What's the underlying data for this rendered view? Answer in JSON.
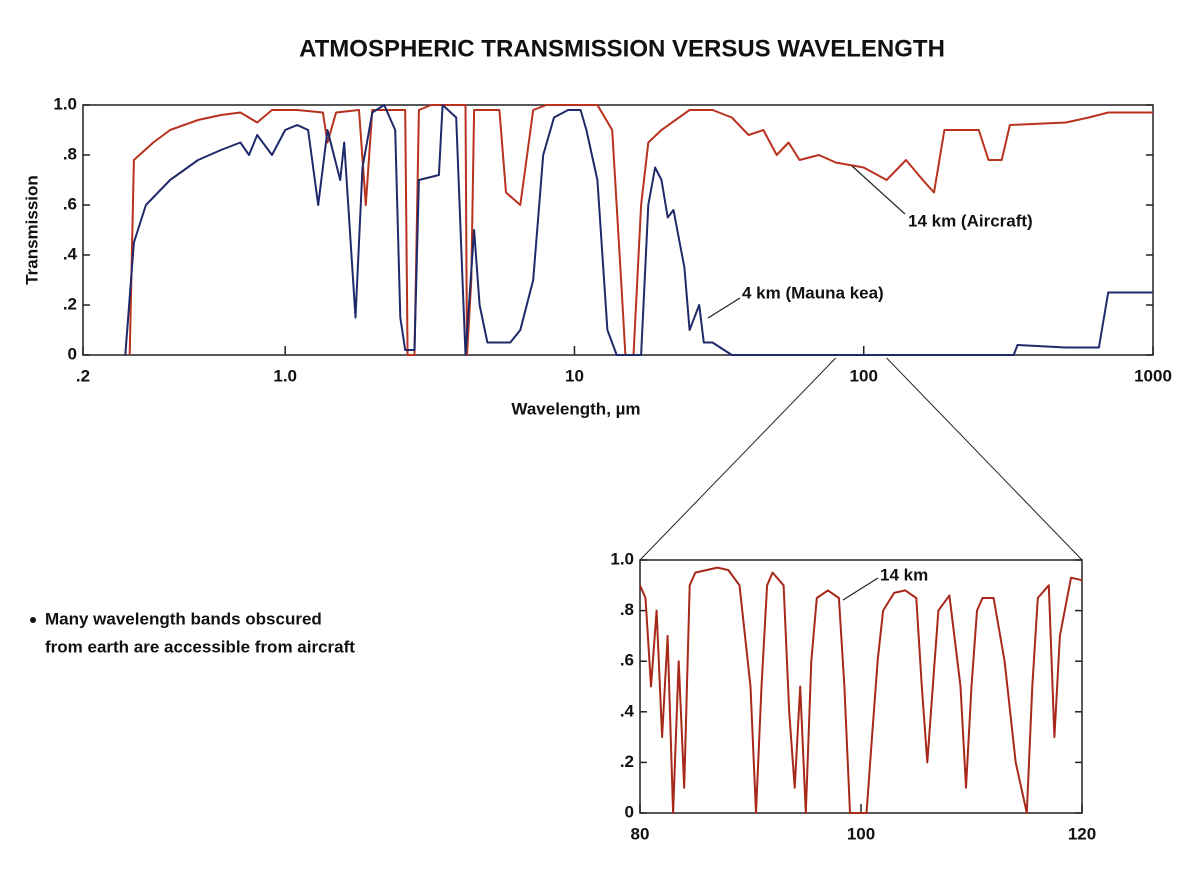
{
  "chart_data": [
    {
      "type": "line",
      "title": "ATMOSPHERIC TRANSMISSION VERSUS WAVELENGTH",
      "x_label": "Wavelength, µm",
      "y_label": "Transmission",
      "xscale": "log",
      "grid": false,
      "xlim": [
        0.2,
        1000
      ],
      "xticks": [
        {
          "value": 0.2,
          "label": ".2"
        },
        {
          "value": 1,
          "label": "1.0"
        },
        10,
        100,
        1000
      ],
      "ylim": [
        0,
        1
      ],
      "yticks": [
        0,
        {
          "value": 0.2,
          "label": ".2"
        },
        {
          "value": 0.4,
          "label": ".4"
        },
        {
          "value": 0.6,
          "label": ".6"
        },
        {
          "value": 0.8,
          "label": ".8"
        },
        {
          "value": 1,
          "label": "1.0"
        }
      ],
      "series": [
        {
          "name": "14 km (Aircraft)",
          "color": "#b8321e",
          "x": [
            0.29,
            0.3,
            0.35,
            0.4,
            0.5,
            0.6,
            0.7,
            0.8,
            0.9,
            1.1,
            1.35,
            1.4,
            1.5,
            1.8,
            1.9,
            2.0,
            2.6,
            2.65,
            2.8,
            2.9,
            3.2,
            4.2,
            4.25,
            4.4,
            4.5,
            5.5,
            5.8,
            6.5,
            7.2,
            8,
            12,
            13.5,
            14.5,
            15,
            16,
            17,
            18,
            20,
            25,
            30,
            35,
            40,
            45,
            50,
            55,
            60,
            70,
            80,
            100,
            120,
            140,
            160,
            175,
            190,
            250,
            270,
            300,
            320,
            500,
            600,
            700,
            1000
          ],
          "values": [
            0,
            0.78,
            0.85,
            0.9,
            0.94,
            0.96,
            0.97,
            0.93,
            0.98,
            0.98,
            0.97,
            0.85,
            0.97,
            0.98,
            0.6,
            0.98,
            0.98,
            0,
            0,
            0.98,
            1,
            1,
            0,
            0.3,
            0.98,
            0.98,
            0.65,
            0.6,
            0.98,
            1,
            1,
            0.9,
            0.3,
            0,
            0,
            0.6,
            0.85,
            0.9,
            0.98,
            0.98,
            0.95,
            0.88,
            0.9,
            0.8,
            0.85,
            0.78,
            0.8,
            0.77,
            0.75,
            0.7,
            0.78,
            0.7,
            0.65,
            0.9,
            0.9,
            0.78,
            0.78,
            0.92,
            0.93,
            0.95,
            0.97,
            0.97
          ]
        },
        {
          "name": "4 km (Mauna kea)",
          "color": "#1f2a6b",
          "x": [
            0.28,
            0.3,
            0.33,
            0.4,
            0.5,
            0.6,
            0.7,
            0.75,
            0.8,
            0.9,
            1.0,
            1.1,
            1.2,
            1.3,
            1.4,
            1.55,
            1.6,
            1.75,
            1.85,
            2.0,
            2.2,
            2.4,
            2.5,
            2.6,
            2.8,
            2.9,
            3.4,
            3.5,
            3.9,
            4.1,
            4.2,
            4.5,
            4.7,
            5.0,
            6.0,
            6.5,
            7.2,
            7.8,
            8.5,
            9.5,
            10.5,
            11,
            12,
            13,
            14,
            17,
            18,
            19,
            20,
            21,
            22,
            24,
            25,
            27,
            28,
            30,
            35,
            330,
            340,
            500,
            650,
            700,
            1000
          ],
          "values": [
            0,
            0.45,
            0.6,
            0.7,
            0.78,
            0.82,
            0.85,
            0.8,
            0.88,
            0.8,
            0.9,
            0.92,
            0.9,
            0.6,
            0.9,
            0.7,
            0.85,
            0.15,
            0.75,
            0.97,
            1,
            0.9,
            0.15,
            0.02,
            0.02,
            0.7,
            0.72,
            1,
            0.95,
            0.3,
            0,
            0.5,
            0.2,
            0.05,
            0.05,
            0.1,
            0.3,
            0.8,
            0.95,
            0.98,
            0.98,
            0.9,
            0.7,
            0.1,
            0,
            0,
            0.6,
            0.75,
            0.7,
            0.55,
            0.58,
            0.35,
            0.1,
            0.2,
            0.05,
            0.05,
            0,
            0,
            0.04,
            0.03,
            0.03,
            0.25,
            0.25
          ]
        }
      ]
    },
    {
      "type": "line",
      "xscale": "linear",
      "grid": false,
      "xlim": [
        80,
        120
      ],
      "xticks": [
        80,
        100,
        120
      ],
      "ylim": [
        0,
        1
      ],
      "yticks": [
        0,
        {
          "value": 0.2,
          "label": ".2"
        },
        {
          "value": 0.4,
          "label": ".4"
        },
        {
          "value": 0.6,
          "label": ".6"
        },
        {
          "value": 0.8,
          "label": ".8"
        },
        {
          "value": 1,
          "label": "1.0"
        }
      ],
      "series": [
        {
          "name": "14 km",
          "color": "#a8281a",
          "x": [
            80,
            80.5,
            81,
            81.5,
            82,
            82.5,
            83,
            83.5,
            84,
            84.5,
            85,
            86,
            87,
            88,
            89,
            90,
            90.5,
            91,
            91.5,
            92,
            93,
            93.5,
            94,
            94.5,
            95,
            95.5,
            96,
            97,
            98,
            98.5,
            99,
            100.5,
            101,
            101.5,
            102,
            103,
            104,
            105,
            105.5,
            106,
            106.5,
            107,
            108,
            109,
            109.5,
            110,
            110.5,
            111,
            112,
            113,
            114,
            115,
            115.5,
            116,
            117,
            117.5,
            118,
            119,
            120
          ],
          "values": [
            0.9,
            0.85,
            0.5,
            0.8,
            0.3,
            0.7,
            0,
            0.6,
            0.1,
            0.9,
            0.95,
            0.96,
            0.97,
            0.96,
            0.9,
            0.5,
            0,
            0.5,
            0.9,
            0.95,
            0.9,
            0.4,
            0.1,
            0.5,
            0,
            0.6,
            0.85,
            0.88,
            0.85,
            0.5,
            0,
            0,
            0.3,
            0.6,
            0.8,
            0.87,
            0.88,
            0.85,
            0.5,
            0.2,
            0.5,
            0.8,
            0.86,
            0.5,
            0.1,
            0.5,
            0.8,
            0.85,
            0.85,
            0.6,
            0.2,
            0,
            0.5,
            0.85,
            0.9,
            0.3,
            0.7,
            0.93,
            0.92
          ]
        }
      ]
    }
  ],
  "note": [
    "Many wavelength bands obscured",
    "from earth are accessible from aircraft"
  ]
}
